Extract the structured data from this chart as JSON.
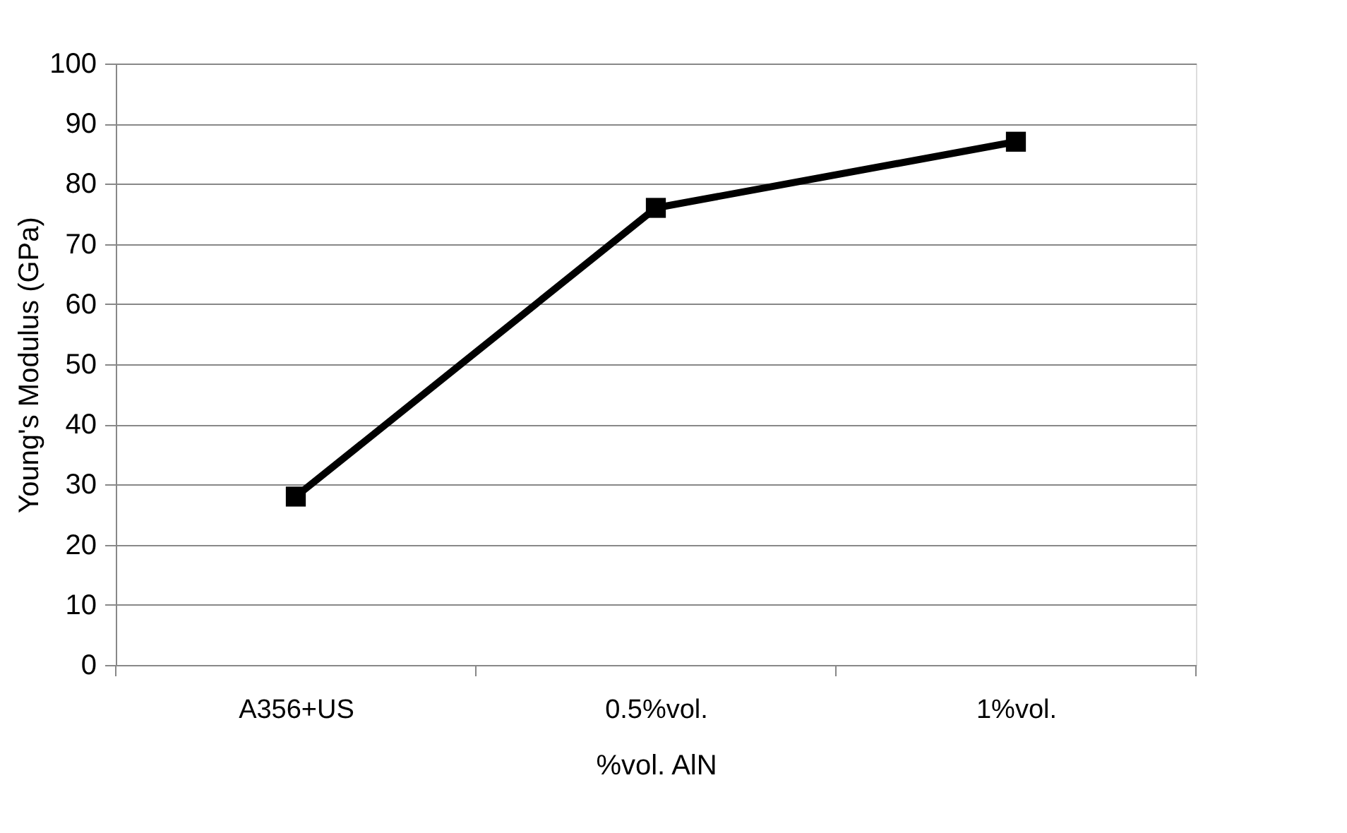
{
  "chart_data": {
    "type": "line",
    "xlabel": "%vol. AlN",
    "ylabel": "Young's Modulus (GPa)",
    "categories": [
      "A356+US",
      "0.5%vol.",
      "1%vol."
    ],
    "series": [
      {
        "color": "#000000",
        "values": [
          28,
          76,
          87
        ]
      }
    ],
    "ylim": [
      0,
      100
    ],
    "yticks": [
      0,
      10,
      20,
      30,
      40,
      50,
      60,
      70,
      80,
      90,
      100
    ],
    "grid": "y",
    "marker": "square",
    "line_style": "solid"
  }
}
